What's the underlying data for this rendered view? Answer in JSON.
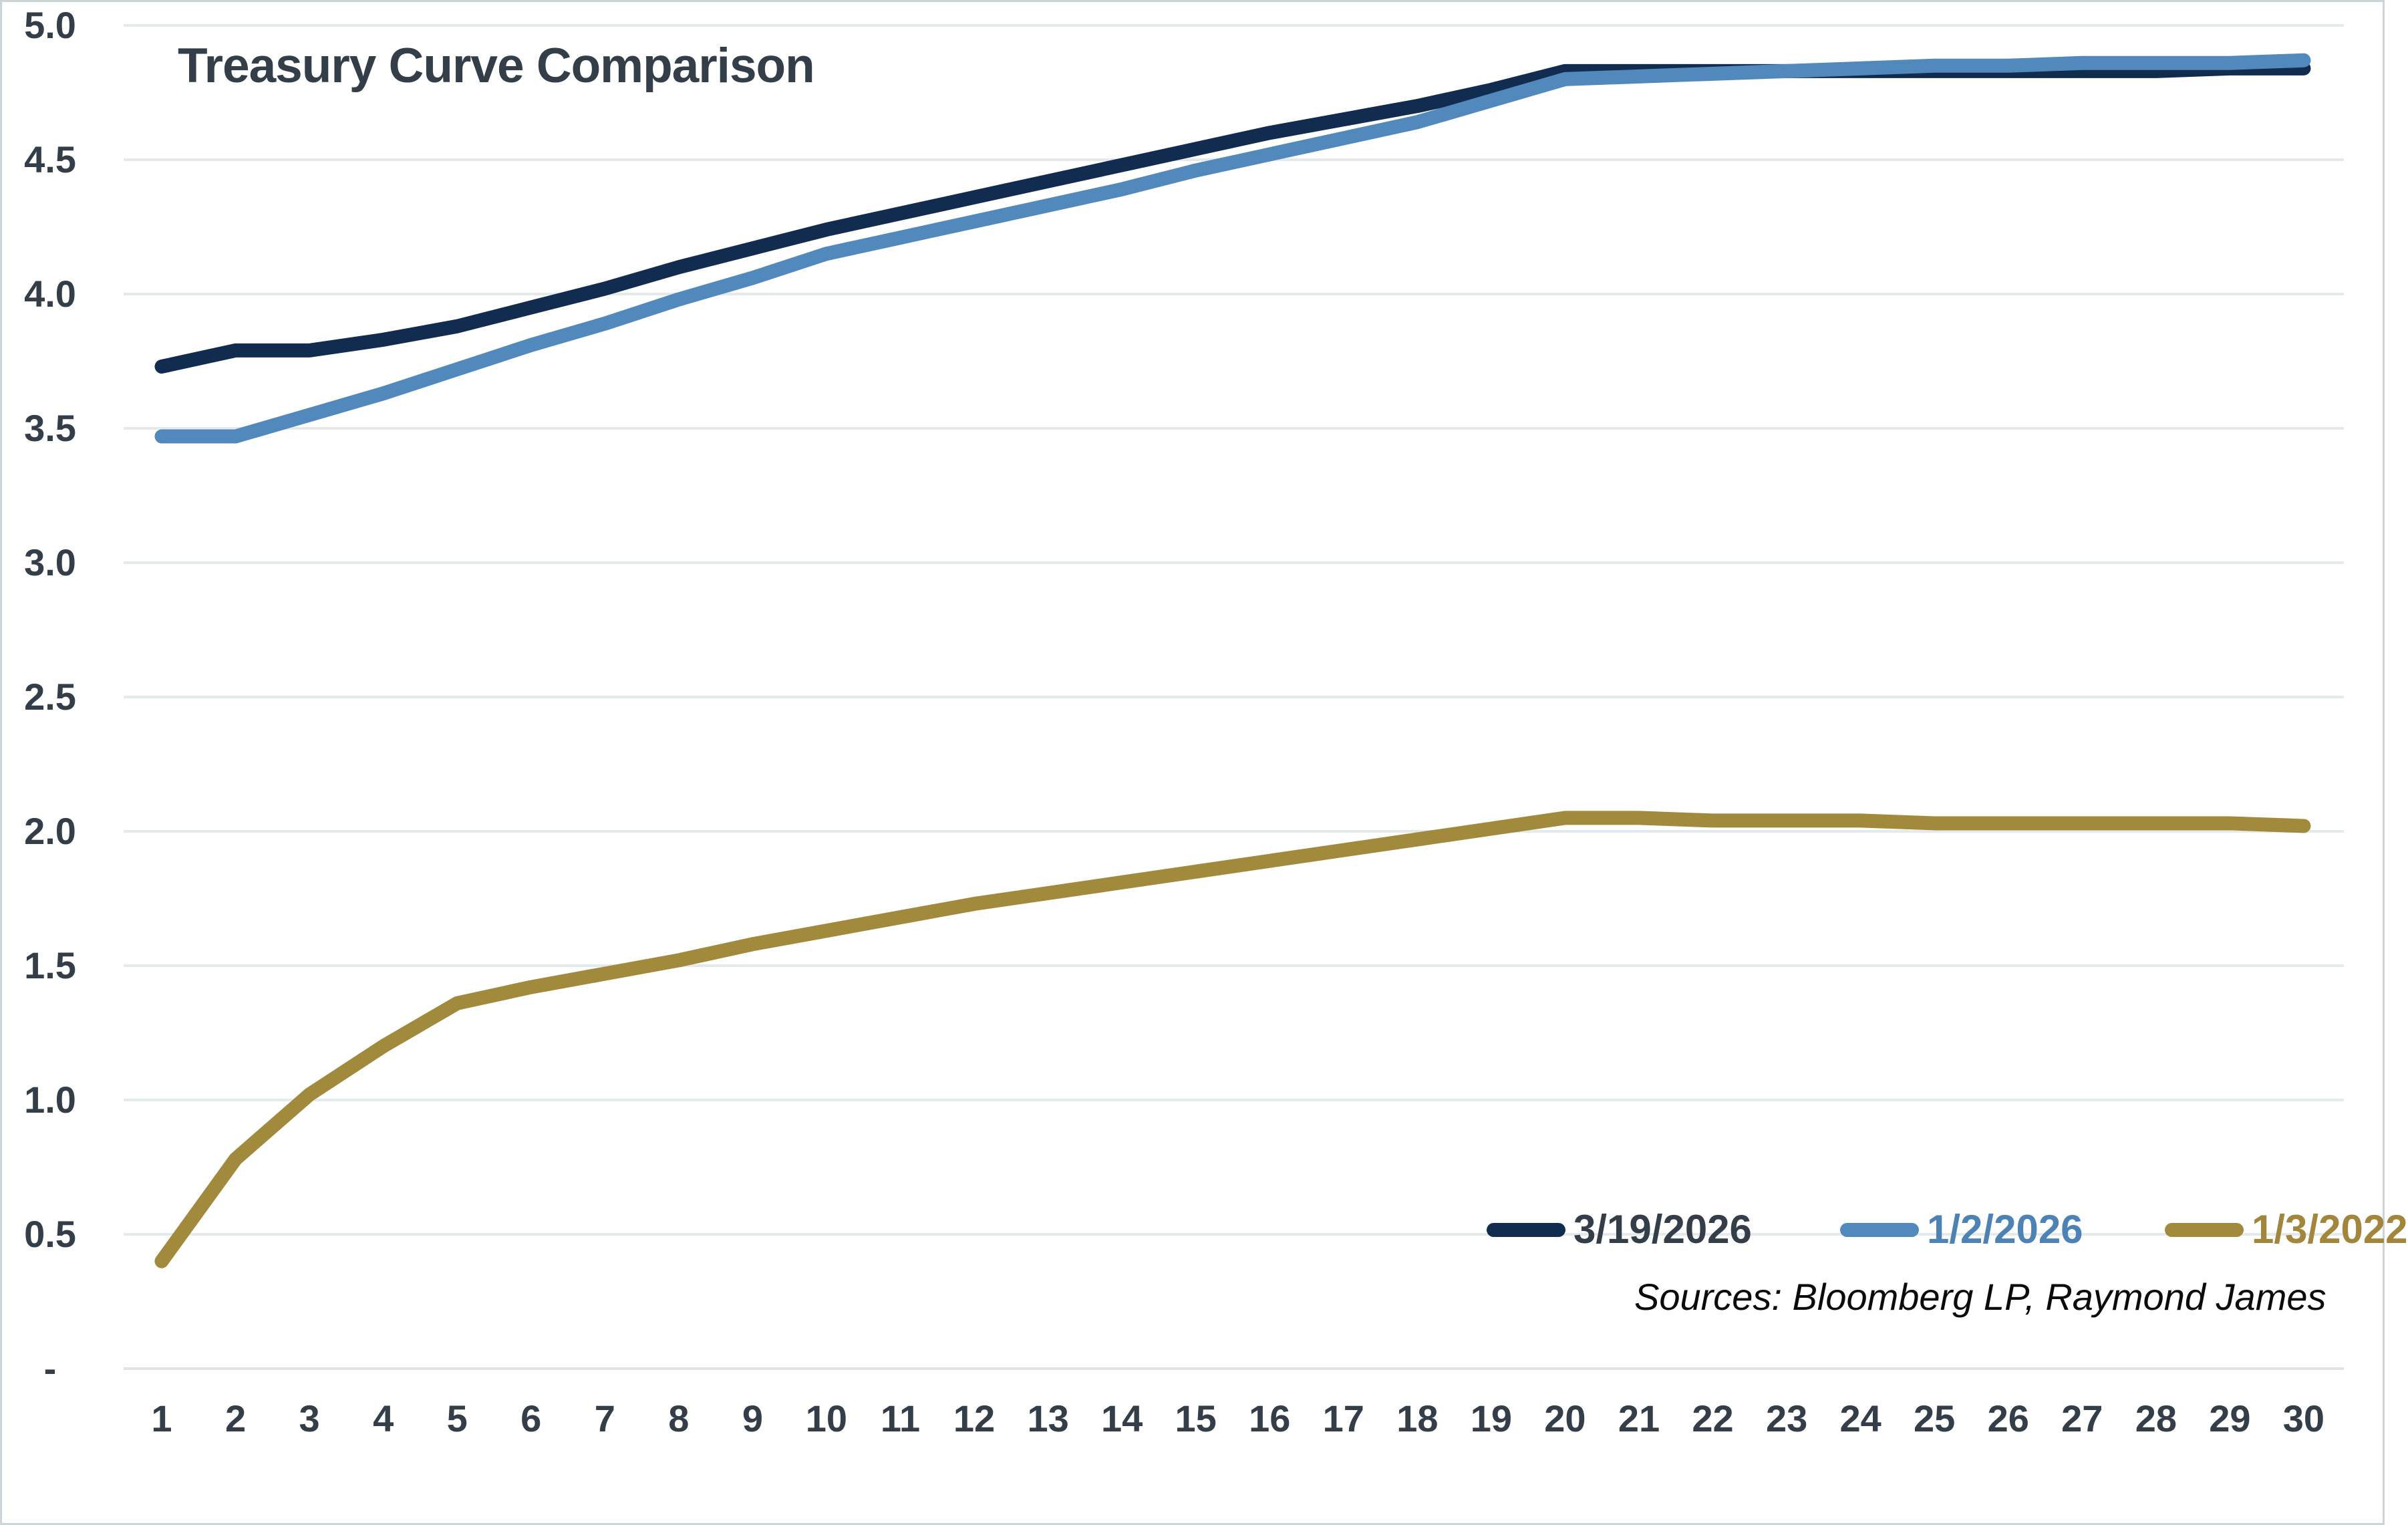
{
  "title": "Treasury Curve Comparison",
  "source_note": "Sources: Bloomberg LP, Raymond James",
  "colors": {
    "background": "#ffffff",
    "border": "#ccd4d8",
    "gridline": "#e4e9ec",
    "zero_line": "#dde4e8",
    "axis_text": "#333e48",
    "title_text": "#333e48",
    "source_text": "#0b0b0b"
  },
  "chart_data": {
    "type": "line",
    "title": "Treasury Curve Comparison",
    "xlabel": "",
    "ylabel": "",
    "ylim": [
      0,
      5
    ],
    "grid": "horizontal",
    "legend_position": "inside-bottom-right",
    "x": [
      1,
      2,
      3,
      4,
      5,
      6,
      7,
      8,
      9,
      10,
      11,
      12,
      13,
      14,
      15,
      16,
      17,
      18,
      19,
      20,
      21,
      22,
      23,
      24,
      25,
      26,
      27,
      28,
      29,
      30
    ],
    "x_tick_labels": [
      "1",
      "2",
      "3",
      "4",
      "5",
      "6",
      "7",
      "8",
      "9",
      "10",
      "11",
      "12",
      "13",
      "14",
      "15",
      "16",
      "17",
      "18",
      "19",
      "20",
      "21",
      "22",
      "23",
      "24",
      "25",
      "26",
      "27",
      "28",
      "29",
      "30"
    ],
    "y_ticks": [
      {
        "label": "5.0",
        "value": 5.0
      },
      {
        "label": "4.5",
        "value": 4.5
      },
      {
        "label": "4.0",
        "value": 4.0
      },
      {
        "label": "3.5",
        "value": 3.5
      },
      {
        "label": "3.0",
        "value": 3.0
      },
      {
        "label": "2.5",
        "value": 2.5
      },
      {
        "label": "2.0",
        "value": 2.0
      },
      {
        "label": "1.5",
        "value": 1.5
      },
      {
        "label": "1.0",
        "value": 1.0
      },
      {
        "label": "0.5",
        "value": 0.5
      },
      {
        "label": "-",
        "value": 0.0
      }
    ],
    "series": [
      {
        "name": "3/19/2026",
        "color": "#122c4f",
        "legend_text_color": "#333e48",
        "values": [
          3.73,
          3.79,
          3.79,
          3.83,
          3.88,
          3.95,
          4.02,
          4.1,
          4.17,
          4.24,
          4.3,
          4.36,
          4.42,
          4.48,
          4.54,
          4.6,
          4.65,
          4.7,
          4.76,
          4.83,
          4.83,
          4.83,
          4.83,
          4.83,
          4.83,
          4.83,
          4.83,
          4.83,
          4.84,
          4.84
        ]
      },
      {
        "name": "1/2/2026",
        "color": "#5289bd",
        "legend_text_color": "#4d82b5",
        "values": [
          3.47,
          3.47,
          3.55,
          3.63,
          3.72,
          3.81,
          3.89,
          3.98,
          4.06,
          4.15,
          4.21,
          4.27,
          4.33,
          4.39,
          4.46,
          4.52,
          4.58,
          4.64,
          4.72,
          4.8,
          4.81,
          4.82,
          4.83,
          4.84,
          4.85,
          4.85,
          4.86,
          4.86,
          4.86,
          4.87
        ]
      },
      {
        "name": "1/3/2022",
        "color": "#a28a3d",
        "legend_text_color": "#a2863b",
        "values": [
          0.4,
          0.78,
          1.02,
          1.2,
          1.36,
          1.42,
          1.47,
          1.52,
          1.58,
          1.63,
          1.68,
          1.73,
          1.77,
          1.81,
          1.85,
          1.89,
          1.93,
          1.97,
          2.01,
          2.05,
          2.05,
          2.04,
          2.04,
          2.04,
          2.03,
          2.03,
          2.03,
          2.03,
          2.03,
          2.02
        ]
      }
    ]
  }
}
